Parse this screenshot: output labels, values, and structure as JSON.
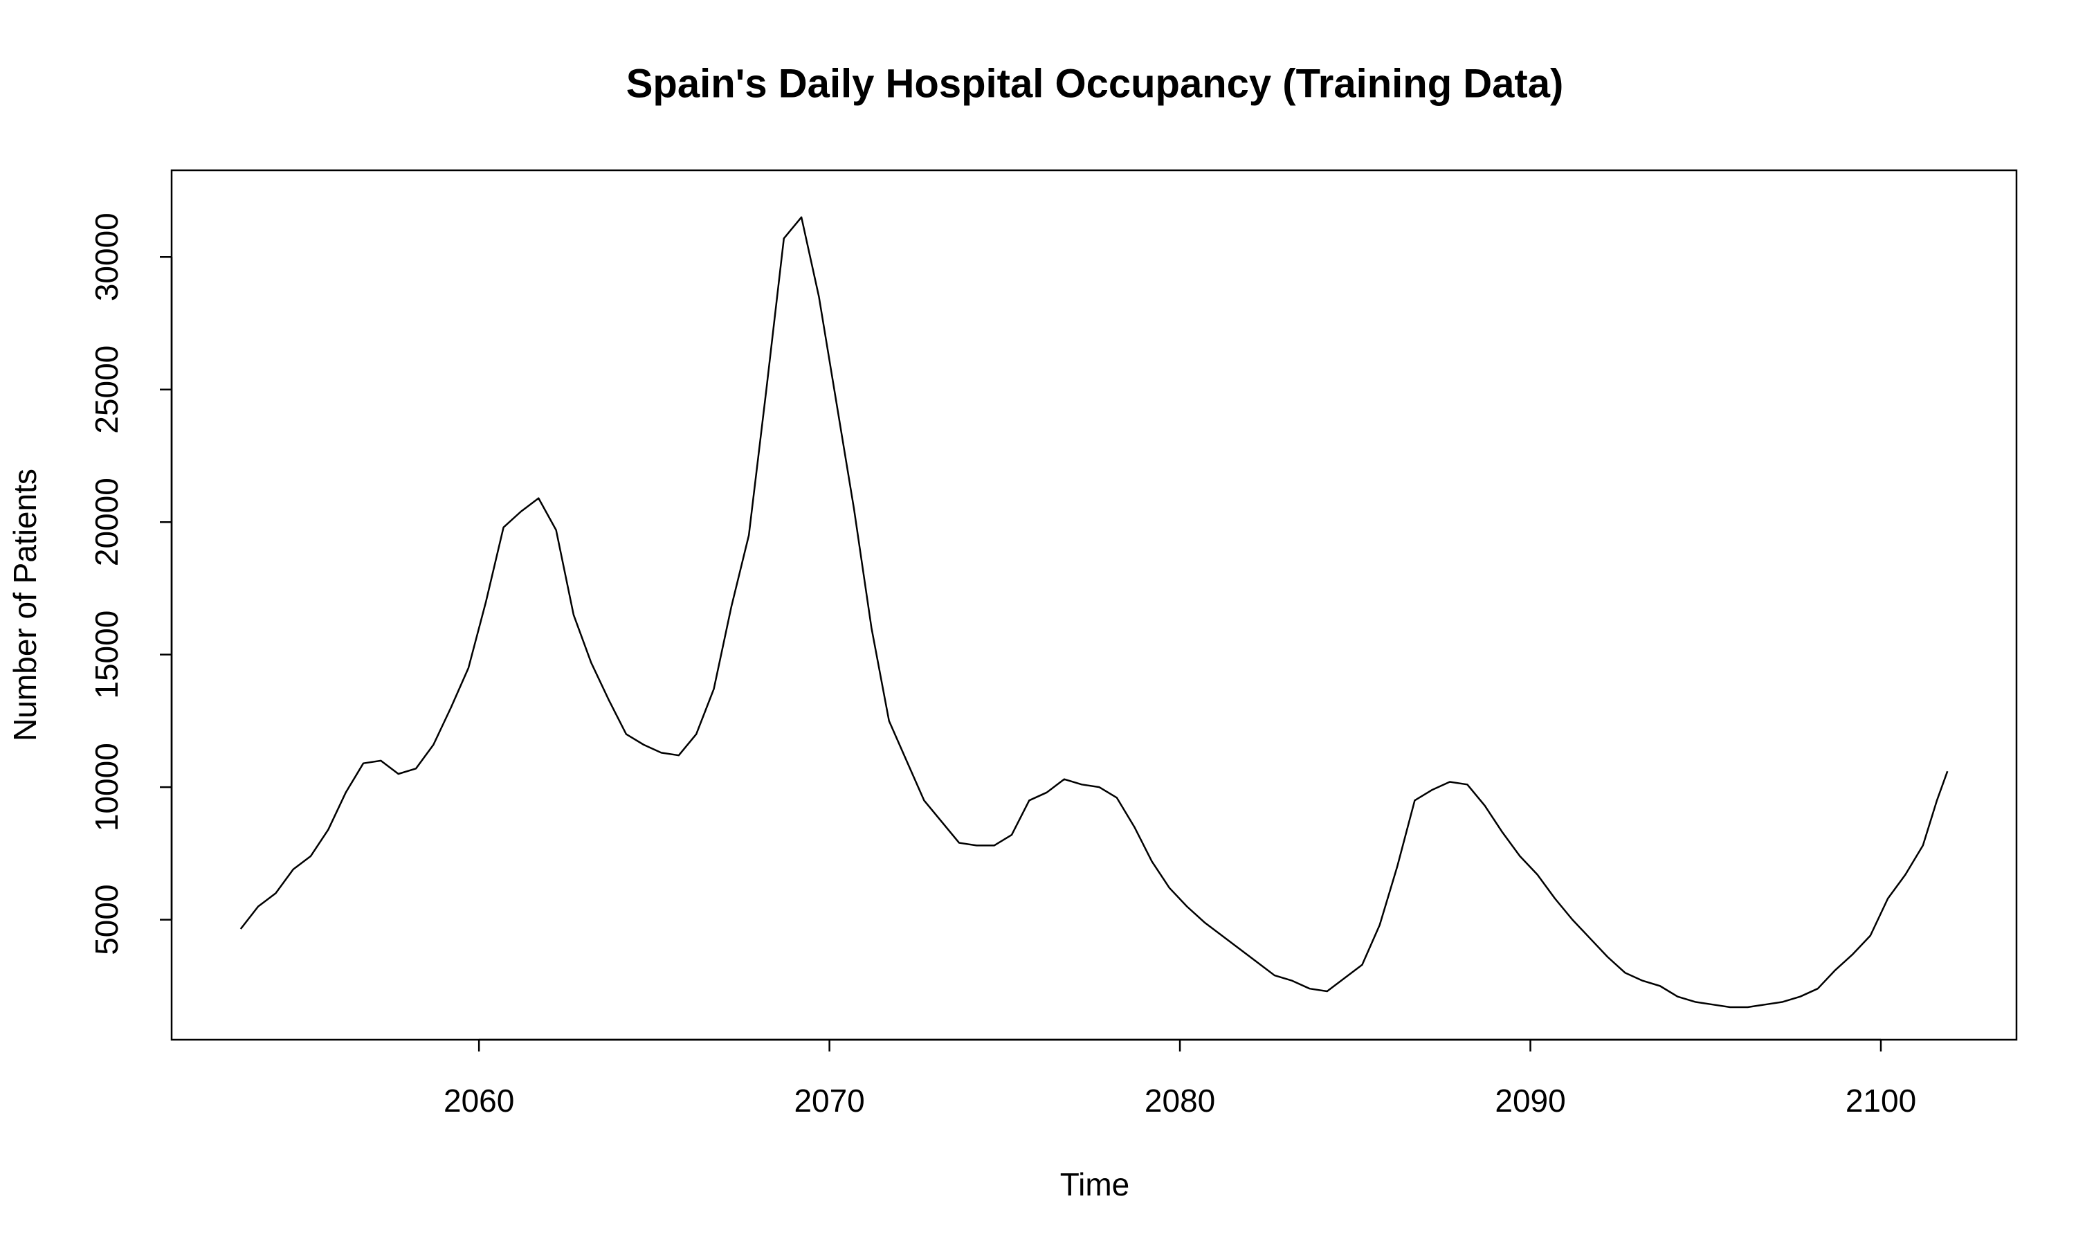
{
  "chart_data": {
    "type": "line",
    "title": "Spain's Daily Hospital Occupancy (Training Data)",
    "x_label": "Time",
    "y_label": "Number of Patients",
    "xlim": [
      2051.23,
      2103.87
    ],
    "ylim": [
      473,
      33270
    ],
    "xticks": [
      2060,
      2070,
      2080,
      2090,
      2100
    ],
    "yticks": [
      5000,
      10000,
      15000,
      20000,
      25000,
      30000
    ],
    "x": [
      2053.2,
      2053.7,
      2054.2,
      2054.7,
      2055.2,
      2055.7,
      2056.2,
      2056.7,
      2057.2,
      2057.7,
      2058.2,
      2058.7,
      2059.2,
      2059.7,
      2060.2,
      2060.7,
      2061.2,
      2061.7,
      2062.2,
      2062.7,
      2063.2,
      2063.7,
      2064.2,
      2064.7,
      2065.2,
      2065.7,
      2066.2,
      2066.7,
      2067.2,
      2067.7,
      2068.2,
      2068.7,
      2069.2,
      2069.7,
      2070.2,
      2070.7,
      2071.2,
      2071.7,
      2072.2,
      2072.7,
      2073.2,
      2073.7,
      2074.2,
      2074.7,
      2075.2,
      2075.7,
      2076.2,
      2076.7,
      2077.2,
      2077.7,
      2078.2,
      2078.7,
      2079.2,
      2079.7,
      2080.2,
      2080.7,
      2081.2,
      2081.7,
      2082.2,
      2082.7,
      2083.2,
      2083.7,
      2084.2,
      2084.7,
      2085.2,
      2085.7,
      2086.2,
      2086.7,
      2087.2,
      2087.7,
      2088.2,
      2088.7,
      2089.2,
      2089.7,
      2090.2,
      2090.7,
      2091.2,
      2091.7,
      2092.2,
      2092.7,
      2093.2,
      2093.7,
      2094.2,
      2094.7,
      2095.2,
      2095.7,
      2096.2,
      2096.7,
      2097.2,
      2097.7,
      2098.2,
      2098.7,
      2099.2,
      2099.7,
      2100.2,
      2100.7,
      2101.2,
      2101.6,
      2101.9
    ],
    "series": [
      {
        "color": "#000000",
        "values": [
          4650,
          5500,
          6000,
          6900,
          7400,
          8400,
          9800,
          10900,
          11000,
          10500,
          10700,
          11600,
          13000,
          14500,
          17000,
          19800,
          20400,
          20900,
          19700,
          16500,
          14700,
          13300,
          12000,
          11600,
          11300,
          11200,
          12000,
          13700,
          16800,
          19500,
          25000,
          30700,
          31500,
          28500,
          24500,
          20500,
          16000,
          12500,
          11000,
          9500,
          8700,
          7900,
          7800,
          7800,
          8200,
          9500,
          9800,
          10300,
          10100,
          10000,
          9600,
          8500,
          7200,
          6200,
          5500,
          4900,
          4400,
          3900,
          3400,
          2900,
          2700,
          2400,
          2300,
          2800,
          3300,
          4800,
          7000,
          9500,
          9900,
          10200,
          10100,
          9300,
          8300,
          7400,
          6700,
          5800,
          5000,
          4300,
          3600,
          3000,
          2700,
          2500,
          2100,
          1900,
          1800,
          1700,
          1700,
          1800,
          1900,
          2100,
          2400,
          3100,
          3700,
          4400,
          5800,
          6700,
          7800,
          9500,
          10600
        ]
      }
    ]
  }
}
